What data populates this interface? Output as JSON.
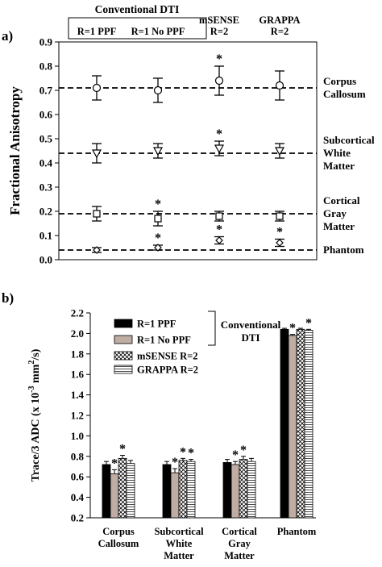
{
  "chart_data": [
    {
      "type": "scatter",
      "panel_label": "a)",
      "ylabel": "Fractional Anisotropy",
      "ylim": [
        0,
        0.9
      ],
      "yticks": [
        "0.0",
        "0.1",
        "0.2",
        "0.3",
        "0.4",
        "0.5",
        "0.6",
        "0.7",
        "0.8",
        "0.9"
      ],
      "group_header": "Conventional DTI",
      "columns": [
        "R=1 PPF",
        "R=1 No PPF",
        "mSENSE\nR=2",
        "GRAPPA\nR=2"
      ],
      "reference_lines": [
        0.71,
        0.44,
        0.19,
        0.04
      ],
      "region_labels": [
        {
          "text": "Corpus\nCallosum",
          "y": 0.71
        },
        {
          "text": "Subcortical\nWhite\nMatter",
          "y": 0.44
        },
        {
          "text": "Cortical\nGray\nMatter",
          "y": 0.19
        },
        {
          "text": "Phantom",
          "y": 0.04
        }
      ],
      "series": [
        {
          "marker": "circle",
          "means": [
            0.71,
            0.7,
            0.74,
            0.72
          ],
          "errors": [
            0.05,
            0.05,
            0.06,
            0.06
          ],
          "significant": [
            false,
            false,
            true,
            false
          ]
        },
        {
          "marker": "triangle-down",
          "means": [
            0.44,
            0.45,
            0.46,
            0.45
          ],
          "errors": [
            0.04,
            0.03,
            0.03,
            0.03
          ],
          "significant": [
            false,
            false,
            true,
            false
          ]
        },
        {
          "marker": "square",
          "means": [
            0.19,
            0.17,
            0.18,
            0.18
          ],
          "errors": [
            0.03,
            0.03,
            0.02,
            0.02
          ],
          "significant": [
            false,
            true,
            false,
            false
          ]
        },
        {
          "marker": "diamond",
          "means": [
            0.04,
            0.05,
            0.08,
            0.07
          ],
          "errors": [
            0.01,
            0.01,
            0.015,
            0.015
          ],
          "significant": [
            false,
            true,
            true,
            true
          ]
        }
      ],
      "significance_marker": "*"
    },
    {
      "type": "bar",
      "panel_label": "b)",
      "ylabel": "Trace/3 ADC (x 10",
      "ylabel_exp1": "-3",
      "ylabel_mid": " mm",
      "ylabel_exp2": "2",
      "ylabel_end": "/s)",
      "ylim": [
        0.2,
        2.2
      ],
      "yticks": [
        "0.2",
        "0.4",
        "0.6",
        "0.8",
        "1.0",
        "1.2",
        "1.4",
        "1.6",
        "1.8",
        "2.0",
        "2.2"
      ],
      "categories": [
        "Corpus\nCallosum",
        "Subcortical\nWhite\nMatter",
        "Cortical\nGray\nMatter",
        "Phantom"
      ],
      "legend_group_label": "Conventional\nDTI",
      "legend_position": "top-left",
      "series": [
        {
          "name": "R=1 PPF",
          "fill": "#000000",
          "pattern": "solid",
          "values": [
            0.72,
            0.72,
            0.74,
            2.04
          ],
          "errors": [
            0.03,
            0.03,
            0.03,
            0.01
          ],
          "significant": [
            false,
            false,
            false,
            false
          ]
        },
        {
          "name": "R=1 No PPF",
          "fill": "#bfaca2",
          "pattern": "solid",
          "values": [
            0.63,
            0.64,
            0.72,
            1.98
          ],
          "errors": [
            0.04,
            0.04,
            0.03,
            0.01
          ],
          "significant": [
            true,
            true,
            true,
            true
          ]
        },
        {
          "name": "mSENSE R=2",
          "fill": "#ffffff",
          "pattern": "crosshatch",
          "values": [
            0.78,
            0.76,
            0.77,
            2.04
          ],
          "errors": [
            0.03,
            0.02,
            0.03,
            0.01
          ],
          "significant": [
            true,
            true,
            true,
            false
          ]
        },
        {
          "name": "GRAPPA R=2",
          "fill": "#ffffff",
          "pattern": "horizontal",
          "values": [
            0.73,
            0.75,
            0.75,
            2.03
          ],
          "errors": [
            0.03,
            0.02,
            0.03,
            0.01
          ],
          "significant": [
            false,
            true,
            false,
            true
          ]
        }
      ],
      "significance_marker": "*"
    }
  ]
}
